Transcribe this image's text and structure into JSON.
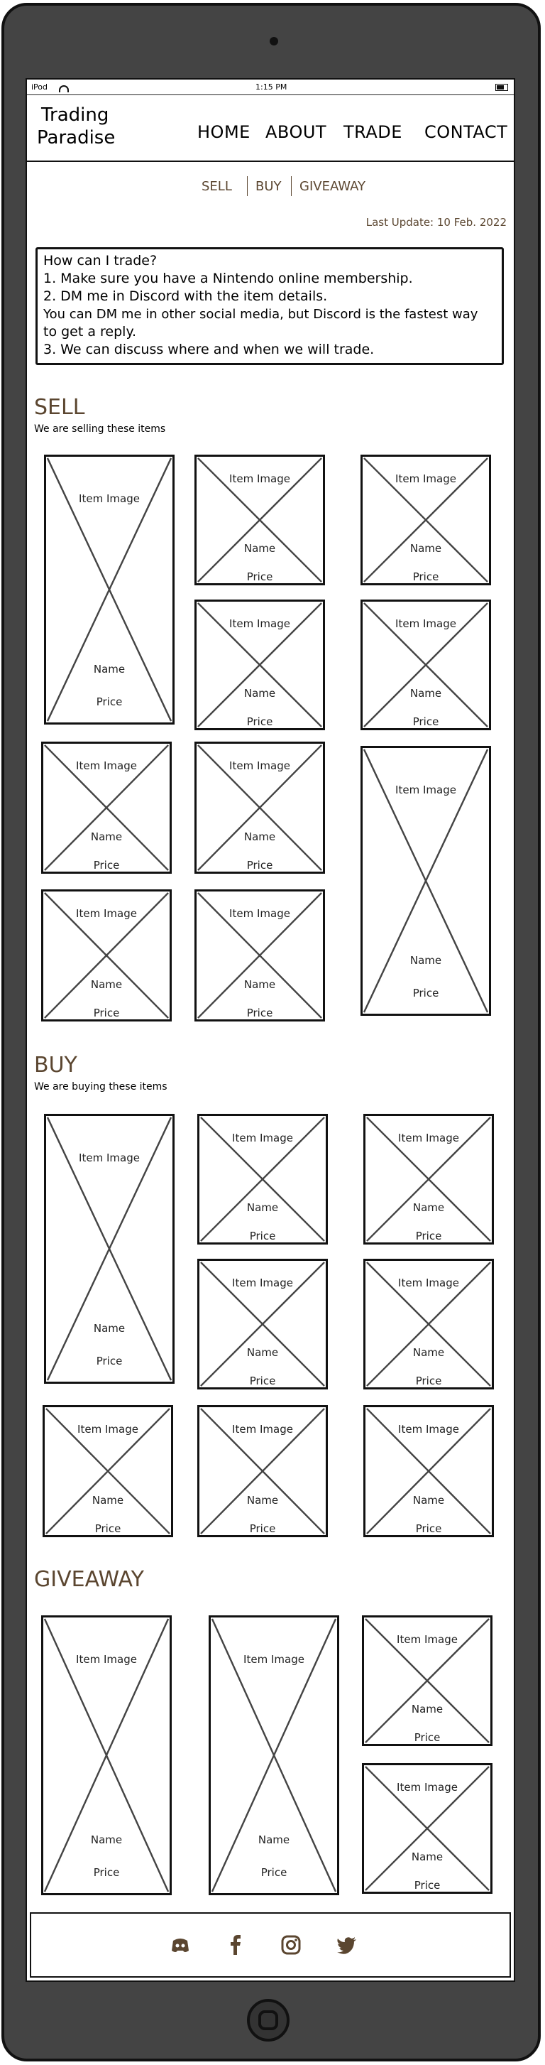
{
  "statusbar": {
    "device": "iPod",
    "time": "1:15 PM"
  },
  "header": {
    "logo_line1": "Trading",
    "logo_line2": "Paradise",
    "nav": [
      "HOME",
      "ABOUT",
      "TRADE",
      "CONTACT"
    ]
  },
  "subnav": [
    "SELL",
    "BUY",
    "GIVEAWAY"
  ],
  "last_update": "Last Update: 10 Feb. 2022",
  "info": [
    "How can I trade?",
    "1. Make sure you have a Nintendo online membership.",
    "2. DM me in Discord with the item details.",
    "You can DM me in other social media, but Discord is the fastest way",
    "to get a reply.",
    "3. We can discuss where and when we will trade."
  ],
  "card_labels": {
    "image": "Item Image",
    "name": "Name",
    "price": "Price"
  },
  "sections": {
    "sell": {
      "title": "SELL",
      "subtitle": "We are selling these items"
    },
    "buy": {
      "title": "BUY",
      "subtitle": "We are buying these items"
    },
    "giveaway": {
      "title": "GIVEAWAY"
    }
  },
  "footer": {
    "icons": [
      "discord-icon",
      "facebook-icon",
      "instagram-icon",
      "twitter-icon"
    ]
  },
  "colors": {
    "accent": "#5b4630",
    "frame": "#444444"
  }
}
